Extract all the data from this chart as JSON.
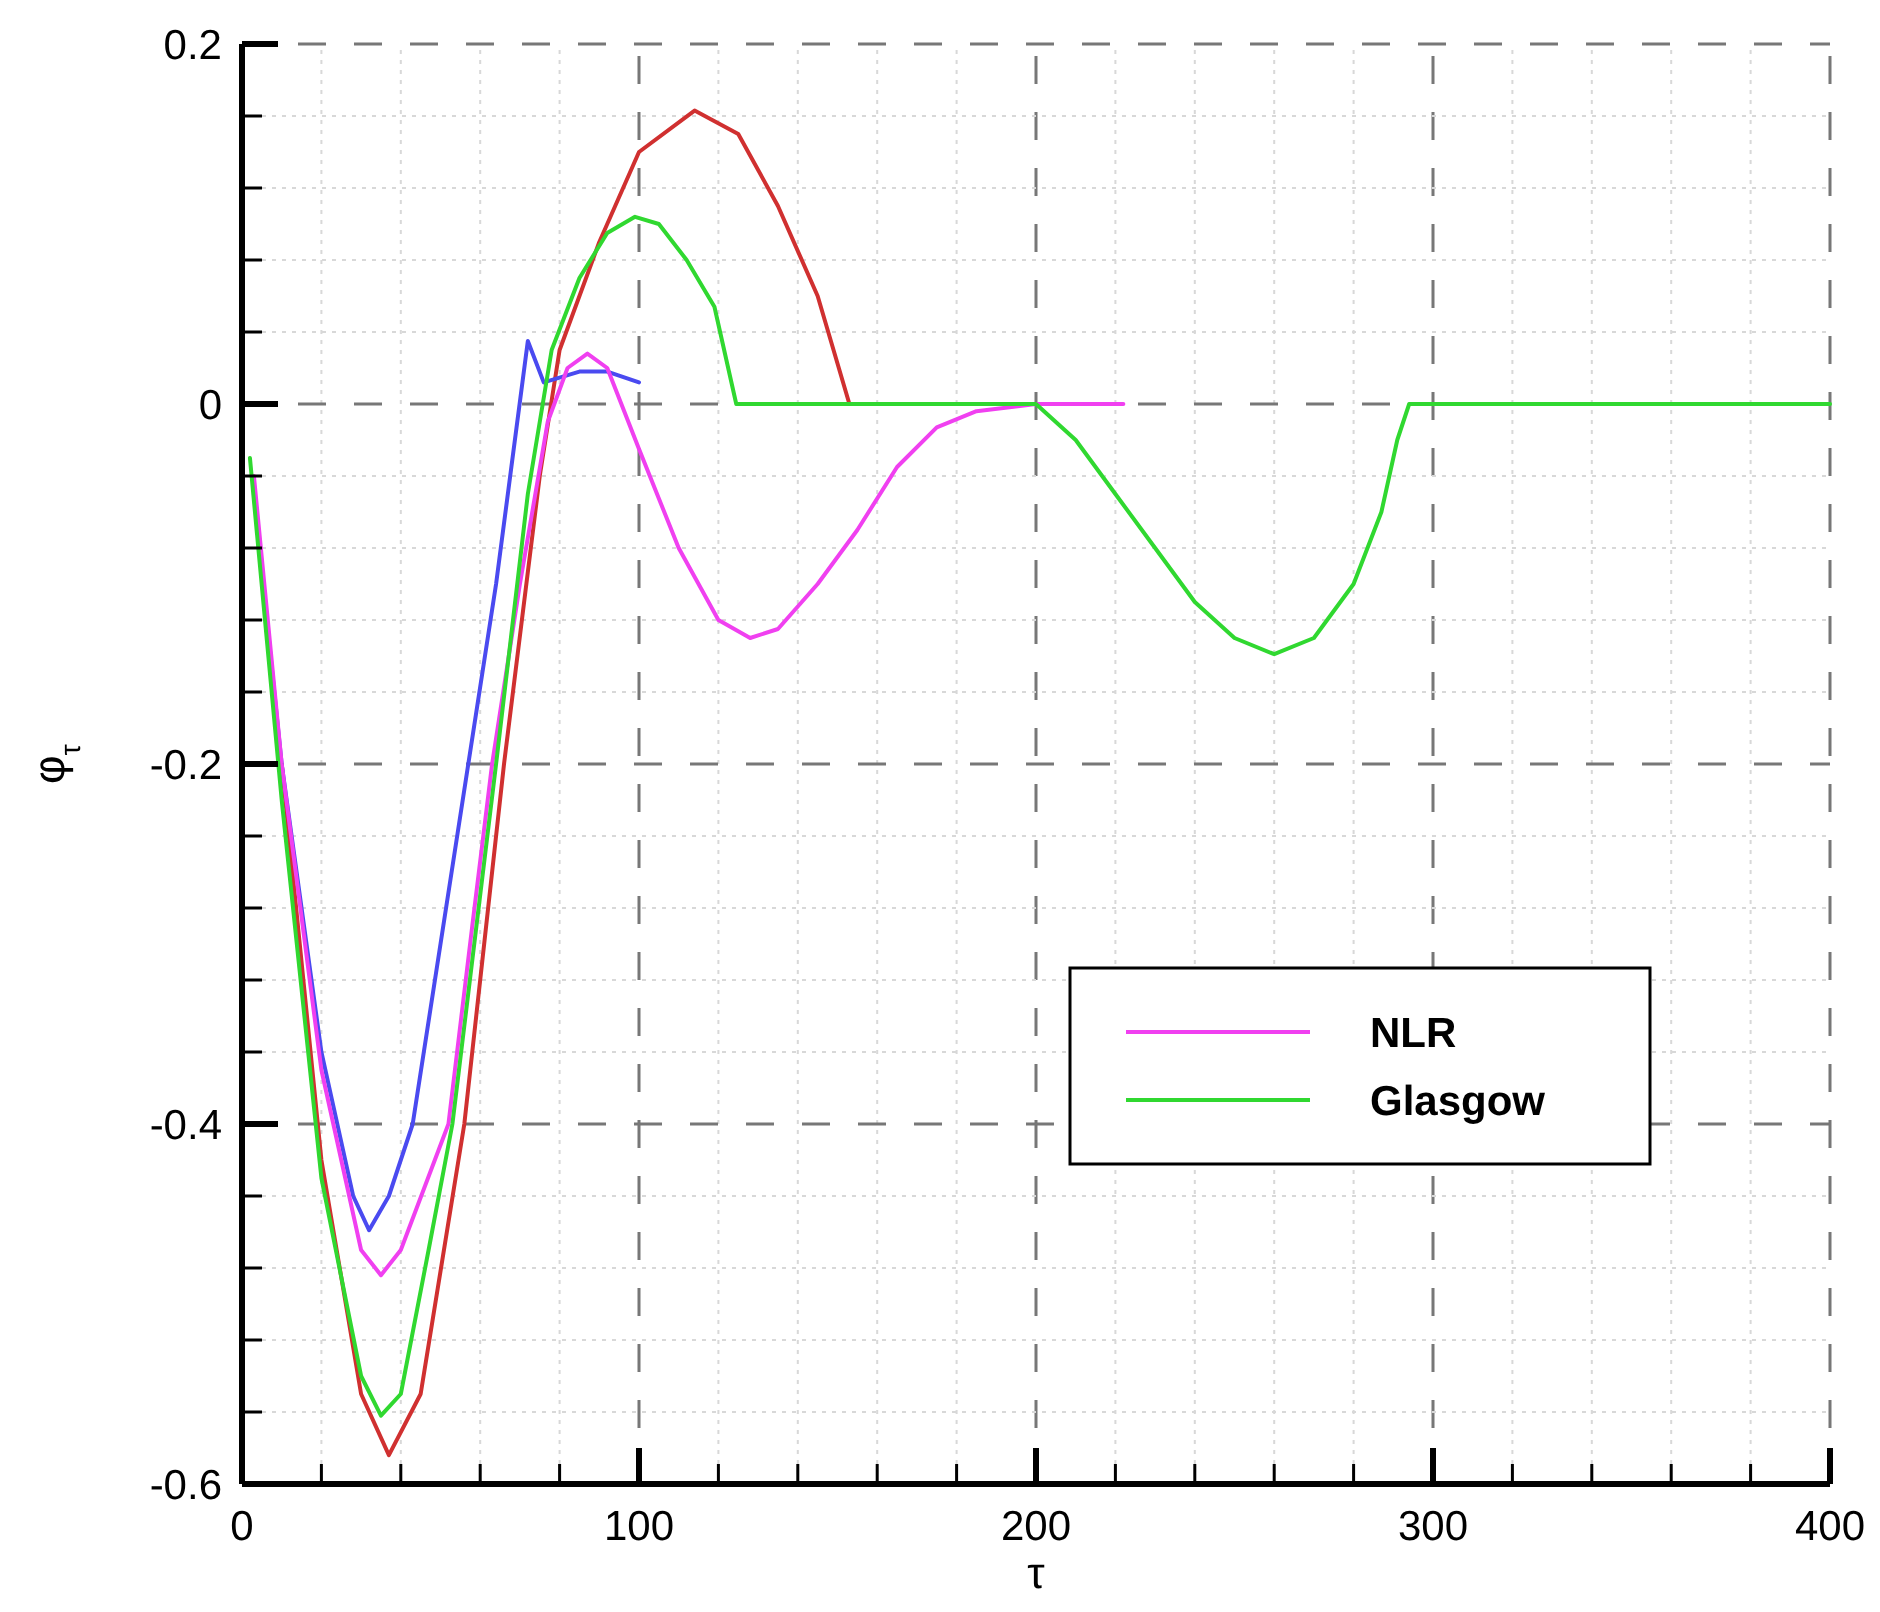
{
  "chart_data": {
    "type": "line",
    "xlabel": "τ",
    "ylabel": "φ$_{τ}$",
    "xlim": [
      0,
      400
    ],
    "ylim": [
      -0.6,
      0.2
    ],
    "xticks": [
      0,
      {
        "value": 20,
        "label": null
      },
      {
        "value": 40,
        "label": null
      },
      {
        "value": 60,
        "label": null
      },
      {
        "value": 80,
        "label": null
      },
      100,
      {
        "value": 120,
        "label": null
      },
      {
        "value": 140,
        "label": null
      },
      {
        "value": 160,
        "label": null
      },
      {
        "value": 180,
        "label": null
      },
      200,
      {
        "value": 220,
        "label": null
      },
      {
        "value": 240,
        "label": null
      },
      {
        "value": 260,
        "label": null
      },
      {
        "value": 280,
        "label": null
      },
      300,
      {
        "value": 320,
        "label": null
      },
      {
        "value": 340,
        "label": null
      },
      {
        "value": 360,
        "label": null
      },
      {
        "value": 380,
        "label": null
      },
      400
    ],
    "yticks": [
      -0.6,
      {
        "value": -0.56,
        "label": null
      },
      {
        "value": -0.52,
        "label": null
      },
      {
        "value": -0.48,
        "label": null
      },
      {
        "value": -0.44,
        "label": null
      },
      -0.4,
      {
        "value": -0.36,
        "label": null
      },
      {
        "value": -0.32,
        "label": null
      },
      {
        "value": -0.28,
        "label": null
      },
      {
        "value": -0.24,
        "label": null
      },
      -0.2,
      {
        "value": -0.16,
        "label": null
      },
      {
        "value": -0.12,
        "label": null
      },
      {
        "value": -0.08,
        "label": null
      },
      {
        "value": -0.04,
        "label": null
      },
      0,
      {
        "value": 0.04,
        "label": null
      },
      {
        "value": 0.08,
        "label": null
      },
      {
        "value": 0.12,
        "label": null
      },
      {
        "value": 0.16,
        "label": null
      },
      0.2
    ],
    "grid": true,
    "legend": "bottom right",
    "line_style": "solid",
    "marker": "none",
    "series": [
      {
        "color": "#d03030",
        "x": [
          10,
          20,
          30,
          37,
          45,
          56,
          66,
          75,
          80,
          90,
          100,
          114,
          125,
          135,
          145,
          153
        ],
        "values": [
          -0.2,
          -0.42,
          -0.55,
          -0.584,
          -0.55,
          -0.4,
          -0.2,
          -0.04,
          0.03,
          0.09,
          0.14,
          0.163,
          0.15,
          0.11,
          0.06,
          0
        ]
      },
      {
        "color": "#4a4af0",
        "x": [
          3,
          10,
          20,
          28,
          32,
          37,
          43,
          50,
          57,
          64,
          72,
          76,
          85,
          92,
          100
        ],
        "values": [
          -0.05,
          -0.2,
          -0.36,
          -0.44,
          -0.459,
          -0.44,
          -0.4,
          -0.3,
          -0.2,
          -0.1,
          0.035,
          0.012,
          0.018,
          0.018,
          0.012
        ]
      },
      {
        "name": "NLR",
        "color": "#f040f0",
        "x": [
          3,
          10,
          20,
          30,
          35,
          40,
          52,
          58,
          63,
          70,
          77,
          82,
          87,
          92,
          100,
          110,
          120,
          128,
          135,
          145,
          155,
          165,
          175,
          185,
          200,
          222
        ],
        "values": [
          -0.04,
          -0.2,
          -0.37,
          -0.47,
          -0.484,
          -0.47,
          -0.4,
          -0.29,
          -0.2,
          -0.1,
          -0.01,
          0.02,
          0.028,
          0.02,
          -0.025,
          -0.08,
          -0.12,
          -0.13,
          -0.125,
          -0.1,
          -0.07,
          -0.035,
          -0.013,
          -0.004,
          0,
          0
        ]
      },
      {
        "name": "Glasgow",
        "color": "#30d830",
        "x": [
          2,
          10,
          20,
          30,
          35,
          40,
          47,
          53,
          64,
          72,
          78,
          85,
          92,
          99,
          105,
          112,
          119,
          124.5,
          200,
          210,
          220,
          230,
          240,
          250,
          260,
          270,
          280,
          287,
          291,
          294,
          400
        ],
        "values": [
          -0.03,
          -0.22,
          -0.43,
          -0.54,
          -0.562,
          -0.55,
          -0.47,
          -0.4,
          -0.2,
          -0.05,
          0.03,
          0.07,
          0.095,
          0.104,
          0.1,
          0.08,
          0.054,
          0,
          0,
          -0.02,
          -0.05,
          -0.08,
          -0.11,
          -0.13,
          -0.139,
          -0.13,
          -0.1,
          -0.06,
          -0.02,
          0,
          0
        ]
      }
    ]
  }
}
